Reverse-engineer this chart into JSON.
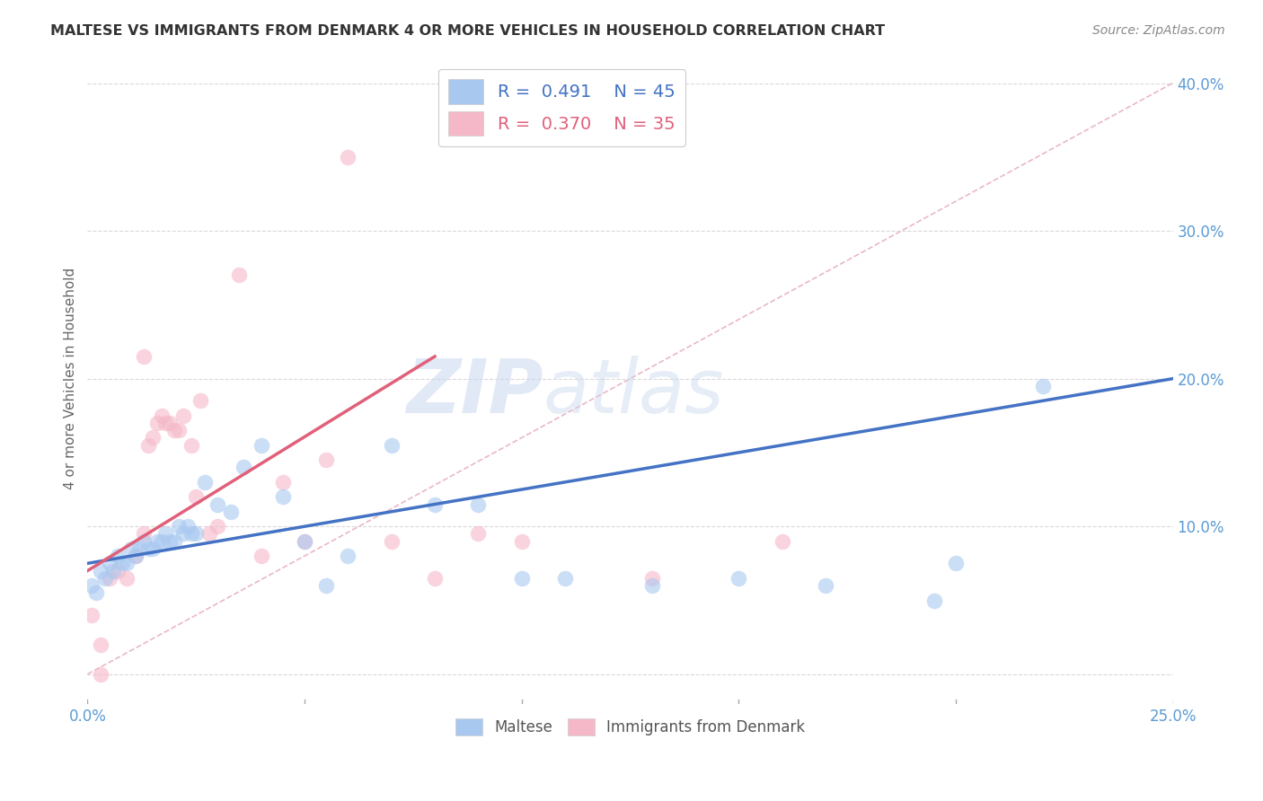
{
  "title": "MALTESE VS IMMIGRANTS FROM DENMARK 4 OR MORE VEHICLES IN HOUSEHOLD CORRELATION CHART",
  "source": "Source: ZipAtlas.com",
  "ylabel": "4 or more Vehicles in Household",
  "xlim": [
    0.0,
    0.25
  ],
  "ylim": [
    -0.02,
    0.42
  ],
  "xticks": [
    0.0,
    0.05,
    0.1,
    0.15,
    0.2,
    0.25
  ],
  "yticks": [
    0.0,
    0.1,
    0.2,
    0.3,
    0.4
  ],
  "xtick_labels": [
    "0.0%",
    "",
    "",
    "",
    "",
    "25.0%"
  ],
  "ytick_labels": [
    "",
    "10.0%",
    "20.0%",
    "30.0%",
    "40.0%"
  ],
  "legend1_r": "0.491",
  "legend1_n": "45",
  "legend2_r": "0.370",
  "legend2_n": "35",
  "blue_color": "#A8C8F0",
  "pink_color": "#F5B8C8",
  "line_blue": "#4472C4",
  "line_pink": "#E0607A",
  "diag_color": "#E8B0C0",
  "watermark_zip": "ZIP",
  "watermark_atlas": "atlas",
  "background_color": "#FFFFFF",
  "grid_color": "#D8D4D8",
  "blue_scatter_x": [
    0.001,
    0.002,
    0.003,
    0.004,
    0.005,
    0.006,
    0.007,
    0.008,
    0.009,
    0.01,
    0.011,
    0.012,
    0.013,
    0.014,
    0.015,
    0.016,
    0.017,
    0.018,
    0.019,
    0.02,
    0.021,
    0.022,
    0.023,
    0.024,
    0.025,
    0.027,
    0.03,
    0.033,
    0.036,
    0.04,
    0.045,
    0.05,
    0.055,
    0.06,
    0.07,
    0.08,
    0.09,
    0.1,
    0.11,
    0.13,
    0.15,
    0.17,
    0.195,
    0.2,
    0.22
  ],
  "blue_scatter_y": [
    0.06,
    0.055,
    0.07,
    0.065,
    0.075,
    0.07,
    0.08,
    0.075,
    0.075,
    0.085,
    0.08,
    0.085,
    0.09,
    0.085,
    0.085,
    0.09,
    0.09,
    0.095,
    0.09,
    0.09,
    0.1,
    0.095,
    0.1,
    0.095,
    0.095,
    0.13,
    0.115,
    0.11,
    0.14,
    0.155,
    0.12,
    0.09,
    0.06,
    0.08,
    0.155,
    0.115,
    0.115,
    0.065,
    0.065,
    0.06,
    0.065,
    0.06,
    0.05,
    0.075,
    0.195
  ],
  "pink_scatter_x": [
    0.001,
    0.003,
    0.005,
    0.007,
    0.009,
    0.011,
    0.013,
    0.014,
    0.015,
    0.016,
    0.017,
    0.018,
    0.019,
    0.02,
    0.021,
    0.022,
    0.024,
    0.026,
    0.028,
    0.03,
    0.035,
    0.04,
    0.045,
    0.05,
    0.055,
    0.06,
    0.07,
    0.08,
    0.09,
    0.1,
    0.13,
    0.16,
    0.003,
    0.013,
    0.025
  ],
  "pink_scatter_y": [
    0.04,
    0.02,
    0.065,
    0.07,
    0.065,
    0.08,
    0.095,
    0.155,
    0.16,
    0.17,
    0.175,
    0.17,
    0.17,
    0.165,
    0.165,
    0.175,
    0.155,
    0.185,
    0.095,
    0.1,
    0.27,
    0.08,
    0.13,
    0.09,
    0.145,
    0.35,
    0.09,
    0.065,
    0.095,
    0.09,
    0.065,
    0.09,
    0.0,
    0.215,
    0.12
  ],
  "blue_line_x": [
    0.0,
    0.25
  ],
  "blue_line_y": [
    0.075,
    0.2
  ],
  "pink_line_x": [
    0.0,
    0.08
  ],
  "pink_line_y": [
    0.07,
    0.215
  ],
  "diag_line_x": [
    0.0,
    0.25
  ],
  "diag_line_y": [
    0.0,
    0.4
  ]
}
